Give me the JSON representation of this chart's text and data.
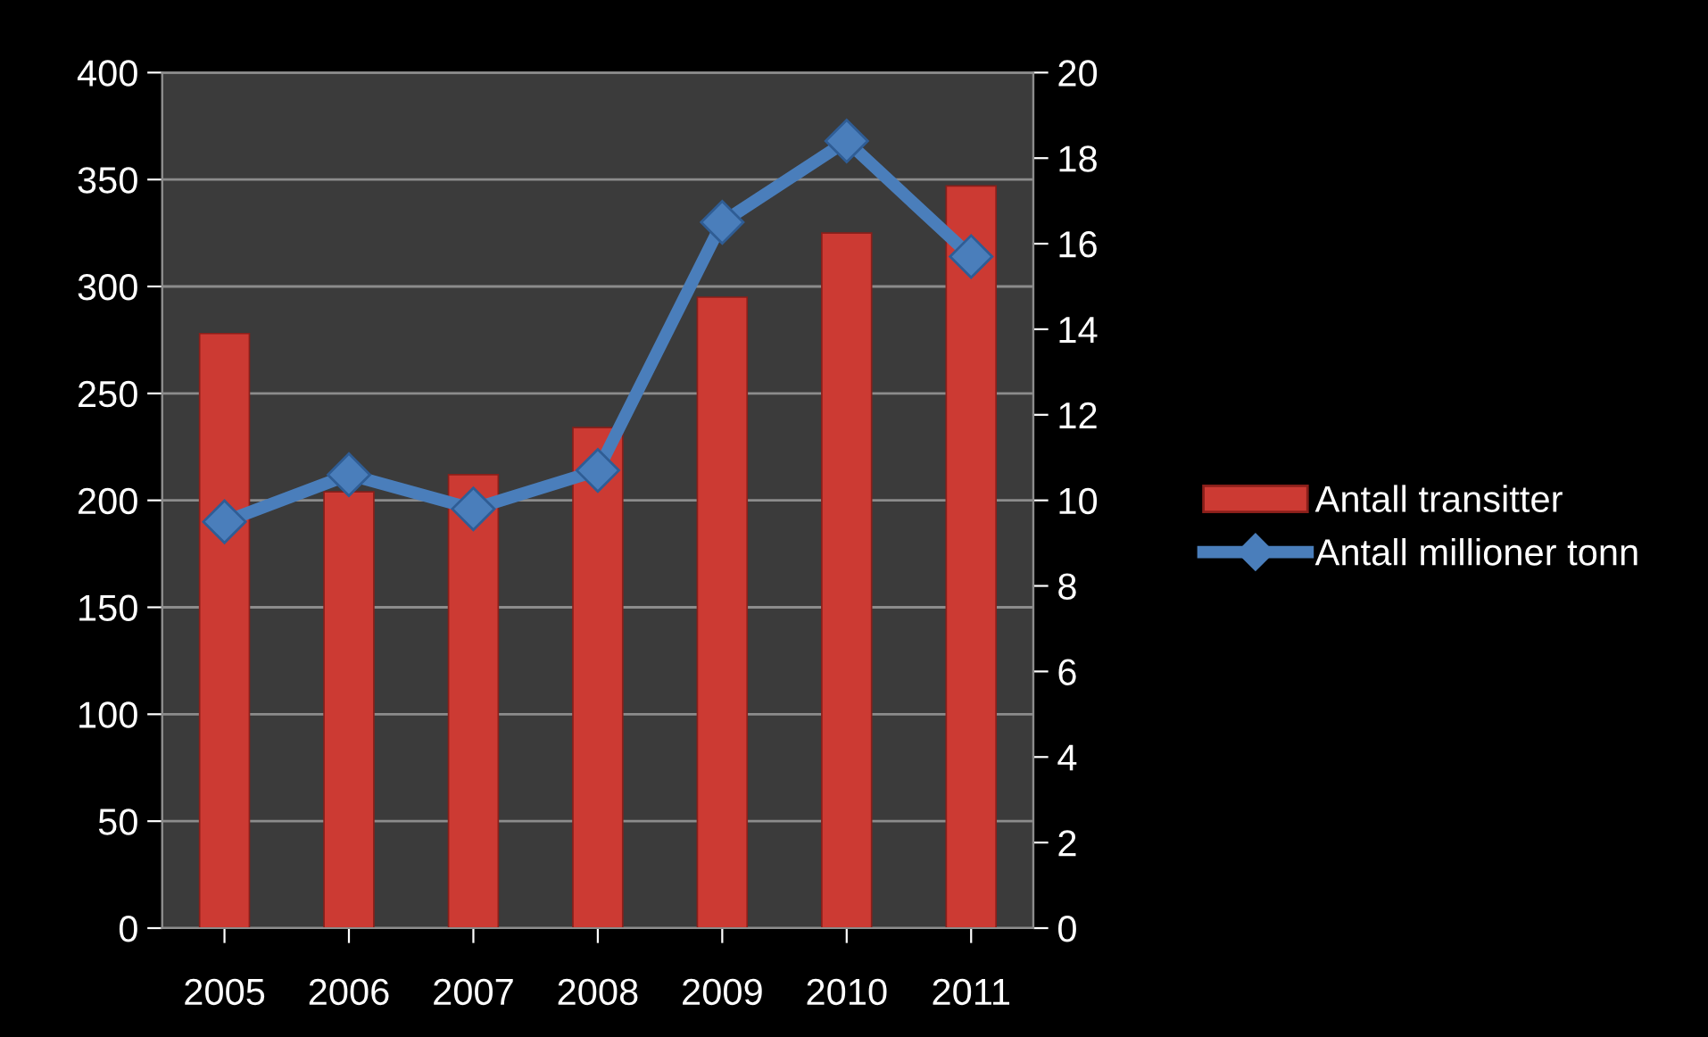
{
  "chart_data": {
    "type": "bar",
    "categories": [
      "2005",
      "2006",
      "2007",
      "2008",
      "2009",
      "2010",
      "2011"
    ],
    "series": [
      {
        "name": "Antall transitter",
        "color": "#cc3a33",
        "values": [
          278,
          204,
          212,
          234,
          295,
          325,
          347
        ]
      },
      {
        "name": "Antall millioner tonn",
        "type": "line",
        "axis": "y2",
        "color": "#4a7ebb",
        "marker": "diamond",
        "values": [
          9.5,
          10.6,
          9.8,
          10.7,
          16.5,
          18.4,
          15.7
        ]
      }
    ],
    "ylim": [
      0,
      400
    ],
    "yticks": [
      0,
      50,
      100,
      150,
      200,
      250,
      300,
      350,
      400
    ],
    "y2lim": [
      0,
      20
    ],
    "y2ticks": [
      0,
      2,
      4,
      6,
      8,
      10,
      12,
      14,
      16,
      18,
      20
    ],
    "grid": "y",
    "legend": "right"
  }
}
